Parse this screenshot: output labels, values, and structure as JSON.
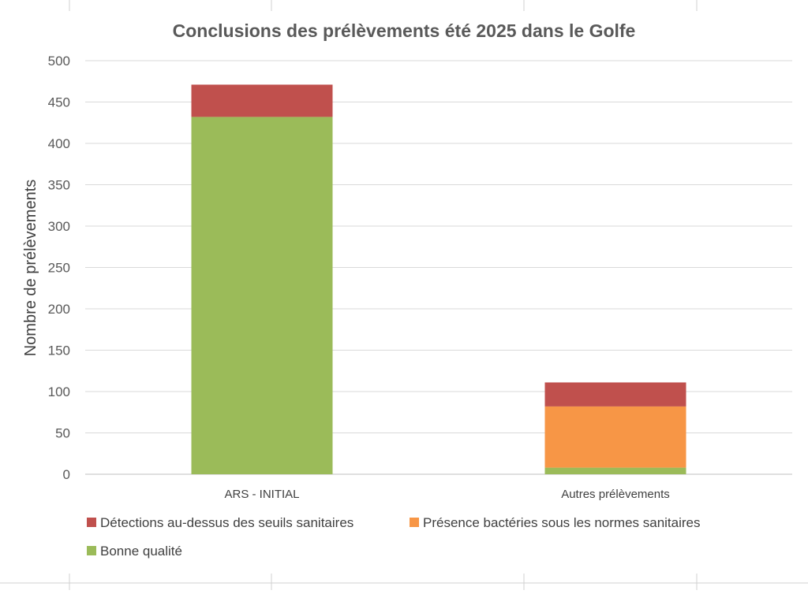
{
  "chart_data": {
    "type": "bar",
    "stacked": true,
    "title": "Conclusions des prélèvements été 2025 dans le Golfe",
    "xlabel": "",
    "ylabel": "Nombre de prélèvements",
    "ylim": [
      0,
      500
    ],
    "yticks": [
      0,
      50,
      100,
      150,
      200,
      250,
      300,
      350,
      400,
      450,
      500
    ],
    "grid": true,
    "legend_position": "bottom",
    "categories": [
      "ARS - INITIAL",
      "Autres prélèvements"
    ],
    "series": [
      {
        "name": "Bonne qualité",
        "color": "#9BBB59",
        "values": [
          432,
          8
        ]
      },
      {
        "name": "Présence bactéries sous les normes sanitaires",
        "color": "#F79646",
        "values": [
          0,
          74
        ]
      },
      {
        "name": "Détections au-dessus des seuils sanitaires",
        "color": "#C0504D",
        "values": [
          39,
          29
        ]
      }
    ],
    "legend_order": [
      "Détections au-dessus des seuils sanitaires",
      "Présence bactéries sous les normes sanitaires",
      "Bonne qualité"
    ]
  }
}
